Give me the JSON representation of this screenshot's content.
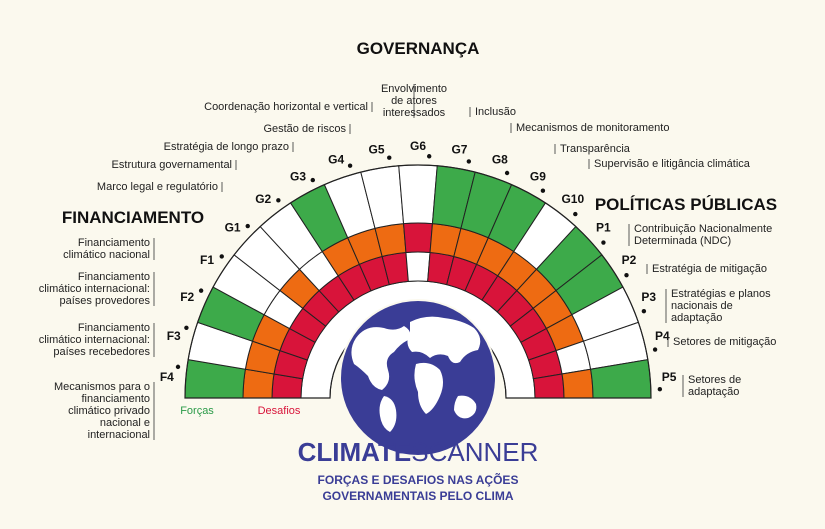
{
  "sections": {
    "governanca": "GOVERNANÇA",
    "financiamento": "FINANCIAMENTO",
    "politicas": "POLÍTICAS PÚBLICAS"
  },
  "legend": {
    "forcas": "Forças",
    "desafios": "Desafios"
  },
  "brand": {
    "bold": "CLIMATE",
    "light": "SCANNER",
    "tagline1": "FORÇAS E DESAFIOS NAS AÇÕES",
    "tagline2": "GOVERNAMENTAIS PELO CLIMA"
  },
  "colors": {
    "green": "#3daa4a",
    "orange": "#ee6b12",
    "red": "#d8143a",
    "white": "#ffffff",
    "globe": "#3a3d96",
    "background": "#fbf9ee"
  },
  "segments": [
    {
      "code": "F4",
      "label": [
        "Mecanismos para o",
        "financiamento",
        "climático privado",
        "nacional e",
        "internacional"
      ],
      "rings": [
        "red",
        "orange",
        "green"
      ]
    },
    {
      "code": "F3",
      "label": [
        "Financiamento",
        "climático internacional:",
        "países recebedores"
      ],
      "rings": [
        "red",
        "orange",
        "white"
      ]
    },
    {
      "code": "F2",
      "label": [
        "Financiamento",
        "climático internacional:",
        "países provedores"
      ],
      "rings": [
        "red",
        "orange",
        "green"
      ]
    },
    {
      "code": "F1",
      "label": [
        "Financiamento",
        "climático nacional"
      ],
      "rings": [
        "red",
        "white",
        "white"
      ]
    },
    {
      "code": "G1",
      "label": [
        "Marco legal e regulatório"
      ],
      "rings": [
        "red",
        "orange",
        "white"
      ]
    },
    {
      "code": "G2",
      "label": [
        "Estrutura governamental"
      ],
      "rings": [
        "red",
        "white",
        "white"
      ]
    },
    {
      "code": "G3",
      "label": [
        "Estratégia de longo prazo"
      ],
      "rings": [
        "red",
        "orange",
        "green"
      ]
    },
    {
      "code": "G4",
      "label": [
        "Gestão de riscos"
      ],
      "rings": [
        "red",
        "orange",
        "white"
      ]
    },
    {
      "code": "G5",
      "label": [
        "Coordenação horizontal e vertical"
      ],
      "rings": [
        "red",
        "orange",
        "white"
      ]
    },
    {
      "code": "G6",
      "label": [
        "Envolvimento",
        "de atores",
        "interessados"
      ],
      "rings": [
        "white",
        "red",
        "white"
      ]
    },
    {
      "code": "G7",
      "label": [
        "Inclusão"
      ],
      "rings": [
        "red",
        "orange",
        "green"
      ]
    },
    {
      "code": "G8",
      "label": [
        "Mecanismos de monitoramento"
      ],
      "rings": [
        "red",
        "orange",
        "green"
      ]
    },
    {
      "code": "G9",
      "label": [
        "Transparência"
      ],
      "rings": [
        "red",
        "orange",
        "green"
      ]
    },
    {
      "code": "G10",
      "label": [
        "Supervisão e litigância climática"
      ],
      "rings": [
        "red",
        "orange",
        "white"
      ]
    },
    {
      "code": "P1",
      "label": [
        "Contribuição Nacionalmente",
        "Determinada (NDC)"
      ],
      "rings": [
        "red",
        "orange",
        "green"
      ]
    },
    {
      "code": "P2",
      "label": [
        "Estratégia de mitigação"
      ],
      "rings": [
        "red",
        "orange",
        "green"
      ]
    },
    {
      "code": "P3",
      "label": [
        "Estratégias e planos",
        "nacionais de",
        "adaptação"
      ],
      "rings": [
        "red",
        "orange",
        "white"
      ]
    },
    {
      "code": "P4",
      "label": [
        "Setores de mitigação"
      ],
      "rings": [
        "red",
        "white",
        "white"
      ]
    },
    {
      "code": "P5",
      "label": [
        "Setores de",
        "adaptação"
      ],
      "rings": [
        "red",
        "orange",
        "green"
      ]
    }
  ]
}
